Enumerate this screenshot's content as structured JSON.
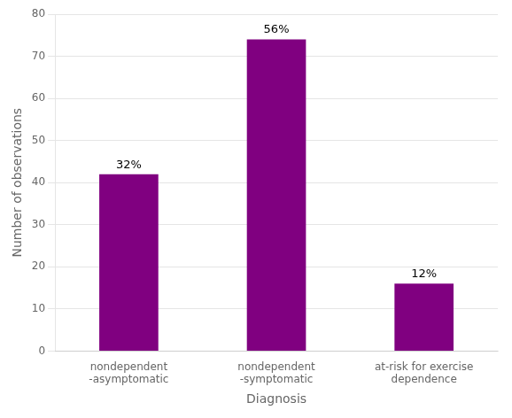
{
  "chart_data": {
    "type": "bar",
    "categories": [
      "nondependent\n-asymptomatic",
      "nondependent\n-symptomatic",
      "at-risk for exercise\ndependence"
    ],
    "values": [
      42,
      74,
      16
    ],
    "annotations": [
      "32%",
      "56%",
      "12%"
    ],
    "color": "#800080",
    "xlabel": "Diagnosis",
    "ylabel": "Number of observations",
    "ylim": [
      0,
      80
    ],
    "yticks": [
      0,
      10,
      20,
      30,
      40,
      50,
      60,
      70,
      80
    ],
    "grid": "y"
  }
}
